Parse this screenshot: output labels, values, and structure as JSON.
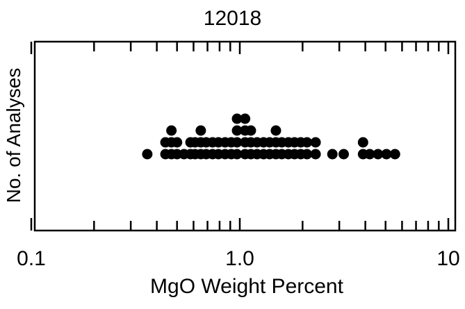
{
  "chart_data": {
    "type": "scatter",
    "subtype": "dot-plot",
    "title": "12018",
    "xlabel": "MgO  Weight Percent",
    "ylabel": "No. of Analyses",
    "x_scale": "log",
    "xlim": [
      0.1,
      10
    ],
    "x_tick_labels": [
      "0.1",
      "1.0",
      "10"
    ],
    "grid": false,
    "marker_color": "#000000",
    "points": [
      {
        "x": 0.36,
        "count": 1
      },
      {
        "x": 0.44,
        "count": 2
      },
      {
        "x": 0.47,
        "count": 3
      },
      {
        "x": 0.5,
        "count": 2
      },
      {
        "x": 0.54,
        "count": 1
      },
      {
        "x": 0.58,
        "count": 2
      },
      {
        "x": 0.61,
        "count": 2
      },
      {
        "x": 0.65,
        "count": 3
      },
      {
        "x": 0.69,
        "count": 2
      },
      {
        "x": 0.74,
        "count": 2
      },
      {
        "x": 0.79,
        "count": 2
      },
      {
        "x": 0.85,
        "count": 2
      },
      {
        "x": 0.91,
        "count": 2
      },
      {
        "x": 0.97,
        "count": 4
      },
      {
        "x": 1.06,
        "count": 4
      },
      {
        "x": 1.13,
        "count": 3
      },
      {
        "x": 1.21,
        "count": 2
      },
      {
        "x": 1.3,
        "count": 2
      },
      {
        "x": 1.39,
        "count": 2
      },
      {
        "x": 1.49,
        "count": 3
      },
      {
        "x": 1.59,
        "count": 2
      },
      {
        "x": 1.71,
        "count": 2
      },
      {
        "x": 1.83,
        "count": 2
      },
      {
        "x": 1.96,
        "count": 2
      },
      {
        "x": 2.1,
        "count": 2
      },
      {
        "x": 2.31,
        "count": 2
      },
      {
        "x": 2.78,
        "count": 1
      },
      {
        "x": 3.15,
        "count": 1
      },
      {
        "x": 3.9,
        "count": 2
      },
      {
        "x": 4.2,
        "count": 1
      },
      {
        "x": 4.6,
        "count": 1
      },
      {
        "x": 5.05,
        "count": 1
      },
      {
        "x": 5.55,
        "count": 1
      }
    ]
  }
}
